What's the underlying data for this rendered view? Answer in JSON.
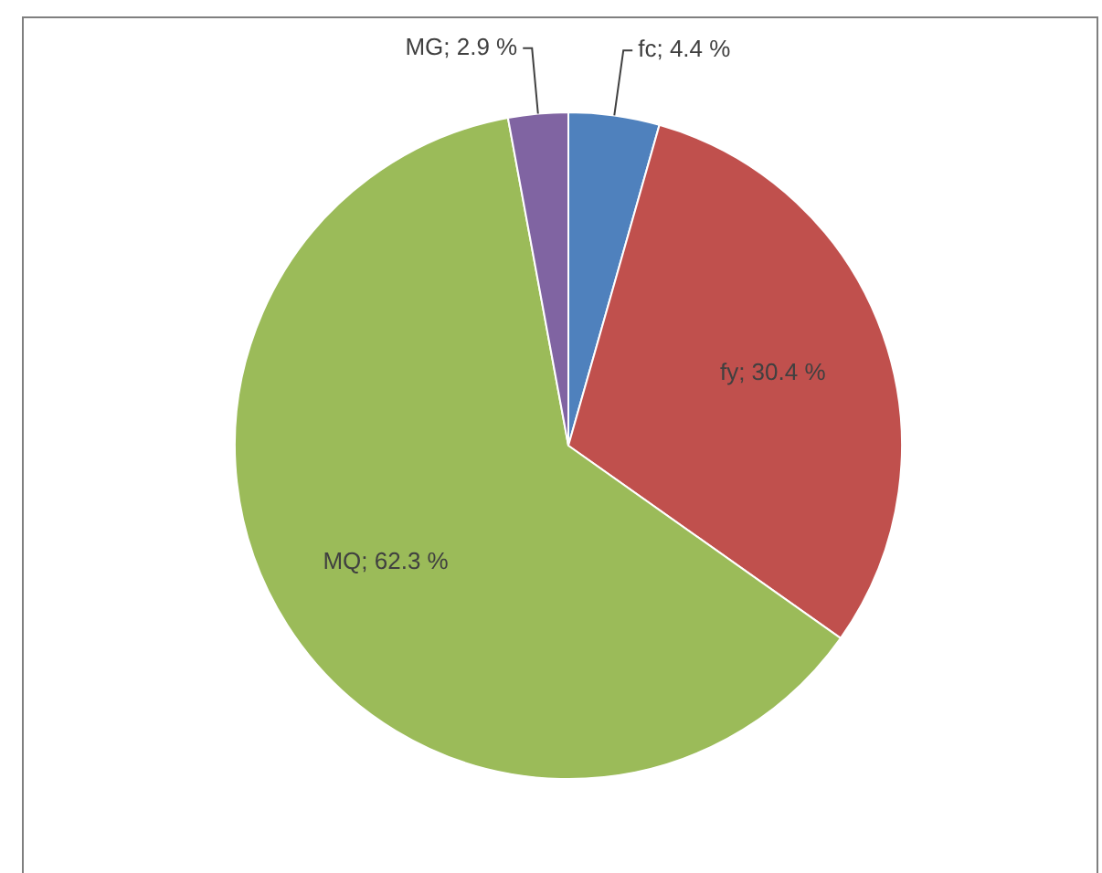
{
  "chart_data": {
    "type": "pie",
    "categories": [
      "fc",
      "fy",
      "MQ",
      "MG"
    ],
    "values": [
      4.4,
      30.4,
      62.3,
      2.9
    ],
    "colors": [
      "#4f81bd",
      "#c0504d",
      "#9bbb59",
      "#8064a2"
    ],
    "value_labels": [
      "4.4 %",
      "30.4 %",
      "62.3 %",
      "2.9 %"
    ]
  }
}
